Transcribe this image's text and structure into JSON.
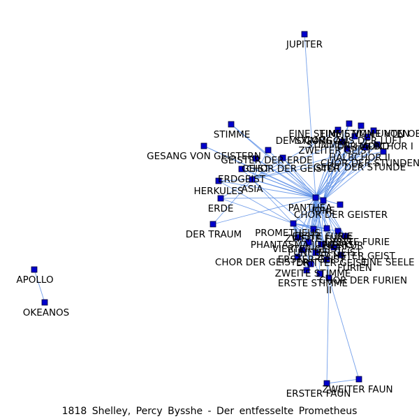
{
  "caption": "1818 Shelley, Percy Bysshe - Der entfesselte Prometheus",
  "colors": {
    "node": "#0000cc",
    "edge": "#5b8ee6",
    "label": "#000000"
  },
  "hubs": [
    "PANTHEA",
    "IONE",
    "CHOR DER GEISTER",
    "PROMETHEUS",
    "ASIA"
  ],
  "nodes": [
    {
      "id": "JUPITER",
      "label": "JUPITER"
    },
    {
      "id": "STIMME",
      "label": "STIMME"
    },
    {
      "id": "GESANG VON GEISTERN",
      "label": "GESANG VON GEISTERN"
    },
    {
      "id": "GEISTER DER ERDE",
      "label": "GEISTER DER ERDE"
    },
    {
      "id": "GEIST",
      "label": "GEIST"
    },
    {
      "id": "CHOR DER GEISTER 2",
      "label": "CHOR DER GEISTER"
    },
    {
      "id": "ERDGEIST",
      "label": "ERDGEIST"
    },
    {
      "id": "ASIA",
      "label": "ASIA"
    },
    {
      "id": "HERKULES",
      "label": "HERKULES"
    },
    {
      "id": "ERDE",
      "label": "ERDE"
    },
    {
      "id": "DER TRAUM",
      "label": "DER TRAUM"
    },
    {
      "id": "PANTHEA",
      "label": "PANTHEA"
    },
    {
      "id": "IONE",
      "label": "IONE"
    },
    {
      "id": "CHOR DER GEISTER",
      "label": "CHOR DER GEISTER"
    },
    {
      "id": "PROMETHEUS",
      "label": "PROMETHEUS"
    },
    {
      "id": "EINE STIMME VON UNTEN",
      "label": "EINE STIMME VON UNTEN"
    },
    {
      "id": "STIMME OBEN",
      "label": "EINE STIMME VON OBEN"
    },
    {
      "id": "DEMOGORGON",
      "label": "DEMOGORGON"
    },
    {
      "id": "STIMMEN",
      "label": "STIMMEN"
    },
    {
      "id": "STIMME AUS DER LUFT",
      "label": "STIMME AUS DER LUFT"
    },
    {
      "id": "ZWEITER GEIST",
      "label": "ZWEITER GEIST"
    },
    {
      "id": "DER MOND",
      "label": "DER MOND"
    },
    {
      "id": "HALBCHOR I",
      "label": "HALBCHOR I"
    },
    {
      "id": "HALBCHOR II",
      "label": "HALBCHOR II"
    },
    {
      "id": "GEIST DER STUNDE",
      "label": "GEIST DER STUNDE"
    },
    {
      "id": "CHOR DER STUNDEN",
      "label": "CHOR DER STUNDEN"
    },
    {
      "id": "ERSTE FURIE",
      "label": "ERSTE FURIE"
    },
    {
      "id": "ZWEITE FURIE",
      "label": "ZWEITE FURIE"
    },
    {
      "id": "DRITTE FURIE",
      "label": "DRITTE FURIE"
    },
    {
      "id": "PHANTASMA JUPITERS",
      "label": "PHANTASMA JUPITERS"
    },
    {
      "id": "MERKUR",
      "label": "MERKUR"
    },
    {
      "id": "VIERTER GEIST",
      "label": "VIERTER GEIST"
    },
    {
      "id": "FUENFTER GEIST",
      "label": "FÜNFTER GEIST"
    },
    {
      "id": "SECHSTER GEIST",
      "label": "SECHSTER GEIST"
    },
    {
      "id": "ERSTER GEIST",
      "label": "ERSTER GEIST"
    },
    {
      "id": "DRITTER GEIST",
      "label": "DRITTER GEIST"
    },
    {
      "id": "CHOR DER GEISTER 3",
      "label": "CHOR DER GEISTER"
    },
    {
      "id": "EINE SEELE",
      "label": "EINE SEELE"
    },
    {
      "id": "FURIEN",
      "label": "FURIEN"
    },
    {
      "id": "CHOR DER FURIEN",
      "label": "CHOR DER FURIEN"
    },
    {
      "id": "ZWEITE STIMME",
      "label": "ZWEITE STIMME"
    },
    {
      "id": "ERSTE STIMME",
      "label": "ERSTE STIMME"
    },
    {
      "id": "HALBCHOR II b",
      "label": "II"
    },
    {
      "id": "ERSTER FAUN",
      "label": "ERSTER FAUN"
    },
    {
      "id": "ZWEITER FAUN",
      "label": "ZWEITER FAUN"
    },
    {
      "id": "APOLLO",
      "label": "APOLLO"
    },
    {
      "id": "OKEANOS",
      "label": "OKEANOS"
    }
  ],
  "edges": [
    [
      "JUPITER",
      "PANTHEA"
    ],
    [
      "STIMME",
      "PANTHEA"
    ],
    [
      "STIMME",
      "IONE"
    ],
    [
      "GESANG VON GEISTERN",
      "PANTHEA"
    ],
    [
      "GESANG VON GEISTERN",
      "IONE"
    ],
    [
      "GEISTER DER ERDE",
      "PANTHEA"
    ],
    [
      "GEISTER DER ERDE",
      "ASIA"
    ],
    [
      "GEIST",
      "PANTHEA"
    ],
    [
      "GEIST",
      "ASIA"
    ],
    [
      "GEIST",
      "IONE"
    ],
    [
      "CHOR DER GEISTER 2",
      "PANTHEA"
    ],
    [
      "CHOR DER GEISTER 2",
      "ASIA"
    ],
    [
      "CHOR DER GEISTER 2",
      "IONE"
    ],
    [
      "ERDGEIST",
      "PANTHEA"
    ],
    [
      "ERDGEIST",
      "ASIA"
    ],
    [
      "ERDGEIST",
      "IONE"
    ],
    [
      "ASIA",
      "PANTHEA"
    ],
    [
      "ASIA",
      "IONE"
    ],
    [
      "ASIA",
      "CHOR DER GEISTER"
    ],
    [
      "ASIA",
      "PROMETHEUS"
    ],
    [
      "HERKULES",
      "PANTHEA"
    ],
    [
      "HERKULES",
      "ASIA"
    ],
    [
      "HERKULES",
      "PROMETHEUS"
    ],
    [
      "ERDE",
      "PANTHEA"
    ],
    [
      "ERDE",
      "PROMETHEUS"
    ],
    [
      "ERDE",
      "ASIA"
    ],
    [
      "DER TRAUM",
      "PANTHEA"
    ],
    [
      "DER TRAUM",
      "ASIA"
    ],
    [
      "PANTHEA",
      "IONE"
    ],
    [
      "PANTHEA",
      "PROMETHEUS"
    ],
    [
      "IONE",
      "PROMETHEUS"
    ],
    [
      "CHOR DER GEISTER",
      "PANTHEA"
    ],
    [
      "EINE STIMME VON UNTEN",
      "PANTHEA"
    ],
    [
      "EINE STIMME VON UNTEN",
      "IONE"
    ],
    [
      "STIMME OBEN",
      "PANTHEA"
    ],
    [
      "STIMME OBEN",
      "IONE"
    ],
    [
      "DEMOGORGON",
      "PANTHEA"
    ],
    [
      "DEMOGORGON",
      "ASIA"
    ],
    [
      "DEMOGORGON",
      "IONE"
    ],
    [
      "STIMMEN",
      "PANTHEA"
    ],
    [
      "STIMMEN",
      "IONE"
    ],
    [
      "STIMME AUS DER LUFT",
      "PANTHEA"
    ],
    [
      "STIMME AUS DER LUFT",
      "ASIA"
    ],
    [
      "ZWEITER GEIST",
      "PANTHEA"
    ],
    [
      "ZWEITER GEIST",
      "IONE"
    ],
    [
      "DER MOND",
      "PANTHEA"
    ],
    [
      "DER MOND",
      "IONE"
    ],
    [
      "HALBCHOR I",
      "PANTHEA"
    ],
    [
      "HALBCHOR I",
      "IONE"
    ],
    [
      "HALBCHOR I",
      "ASIA"
    ],
    [
      "HALBCHOR II",
      "PANTHEA"
    ],
    [
      "HALBCHOR II",
      "IONE"
    ],
    [
      "GEIST DER STUNDE",
      "PANTHEA"
    ],
    [
      "GEIST DER STUNDE",
      "ASIA"
    ],
    [
      "GEIST DER STUNDE",
      "IONE"
    ],
    [
      "CHOR DER STUNDEN",
      "PANTHEA"
    ],
    [
      "CHOR DER STUNDEN",
      "IONE"
    ],
    [
      "ERSTE FURIE",
      "PANTHEA"
    ],
    [
      "ERSTE FURIE",
      "PROMETHEUS"
    ],
    [
      "ERSTE FURIE",
      "IONE"
    ],
    [
      "ZWEITE FURIE",
      "PANTHEA"
    ],
    [
      "ZWEITE FURIE",
      "PROMETHEUS"
    ],
    [
      "DRITTE FURIE",
      "PANTHEA"
    ],
    [
      "DRITTE FURIE",
      "PROMETHEUS"
    ],
    [
      "PHANTASMA JUPITERS",
      "PANTHEA"
    ],
    [
      "PHANTASMA JUPITERS",
      "PROMETHEUS"
    ],
    [
      "MERKUR",
      "PANTHEA"
    ],
    [
      "MERKUR",
      "PROMETHEUS"
    ],
    [
      "MERKUR",
      "IONE"
    ],
    [
      "VIERTER GEIST",
      "PANTHEA"
    ],
    [
      "VIERTER GEIST",
      "IONE"
    ],
    [
      "FUENFTER GEIST",
      "PANTHEA"
    ],
    [
      "FUENFTER GEIST",
      "IONE"
    ],
    [
      "SECHSTER GEIST",
      "PANTHEA"
    ],
    [
      "SECHSTER GEIST",
      "PROMETHEUS"
    ],
    [
      "ERSTER GEIST",
      "PANTHEA"
    ],
    [
      "ERSTER GEIST",
      "IONE"
    ],
    [
      "DRITTER GEIST",
      "PANTHEA"
    ],
    [
      "DRITTER GEIST",
      "PROMETHEUS"
    ],
    [
      "CHOR DER GEISTER 3",
      "PANTHEA"
    ],
    [
      "CHOR DER GEISTER 3",
      "PROMETHEUS"
    ],
    [
      "EINE SEELE",
      "PANTHEA"
    ],
    [
      "EINE SEELE",
      "IONE"
    ],
    [
      "EINE SEELE",
      "ASIA"
    ],
    [
      "FURIEN",
      "PANTHEA"
    ],
    [
      "FURIEN",
      "PROMETHEUS"
    ],
    [
      "CHOR DER FURIEN",
      "PANTHEA"
    ],
    [
      "CHOR DER FURIEN",
      "PROMETHEUS"
    ],
    [
      "CHOR DER FURIEN",
      "IONE"
    ],
    [
      "ZWEITE STIMME",
      "PANTHEA"
    ],
    [
      "ZWEITE STIMME",
      "PROMETHEUS"
    ],
    [
      "ERSTE STIMME",
      "PANTHEA"
    ],
    [
      "ERSTE STIMME",
      "PROMETHEUS"
    ],
    [
      "HALBCHOR II b",
      "PANTHEA"
    ],
    [
      "HALBCHOR II b",
      "IONE"
    ],
    [
      "HALBCHOR II b",
      "ERSTER FAUN"
    ],
    [
      "HALBCHOR II b",
      "ZWEITER FAUN"
    ],
    [
      "ERSTER FAUN",
      "ZWEITER FAUN"
    ],
    [
      "APOLLO",
      "OKEANOS"
    ]
  ]
}
